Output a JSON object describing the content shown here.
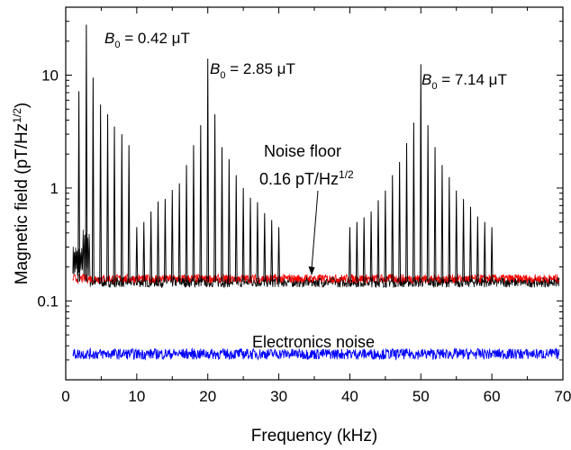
{
  "chart_data": {
    "type": "line",
    "xlabel": "Frequency (kHz)",
    "ylabel": "Magnetic field (pT/Hz",
    "ylabel_sup": "1/2",
    "ylabel_end": ")",
    "xlim": [
      0,
      70
    ],
    "ylim": [
      0.02,
      40
    ],
    "y_scale": "log",
    "grid": false,
    "x_ticks": [
      0,
      10,
      20,
      30,
      40,
      50,
      60,
      70
    ],
    "y_ticks": [
      {
        "value": 0.1,
        "label": "0.1"
      },
      {
        "value": 1,
        "label": "1"
      },
      {
        "value": 10,
        "label": "10"
      }
    ],
    "series": [
      {
        "color": "#000000",
        "peaks": [
          {
            "x": 1.85,
            "y": 7.2
          },
          {
            "x": 2.9,
            "y": 28
          },
          {
            "x": 3.85,
            "y": 9.5
          },
          {
            "x": 4.9,
            "y": 5.5
          },
          {
            "x": 5.9,
            "y": 4.5
          },
          {
            "x": 6.85,
            "y": 3.5
          },
          {
            "x": 7.9,
            "y": 3.0
          },
          {
            "x": 8.9,
            "y": 2.4
          },
          {
            "x": 10.0,
            "y": 0.45
          },
          {
            "x": 11.0,
            "y": 0.5
          },
          {
            "x": 12.0,
            "y": 0.62
          },
          {
            "x": 13.0,
            "y": 0.76
          },
          {
            "x": 14.0,
            "y": 0.8
          },
          {
            "x": 15.0,
            "y": 0.96
          },
          {
            "x": 16.0,
            "y": 1.1
          },
          {
            "x": 17.0,
            "y": 1.6
          },
          {
            "x": 18.0,
            "y": 2.4
          },
          {
            "x": 19.0,
            "y": 3.6
          },
          {
            "x": 20.0,
            "y": 14
          },
          {
            "x": 21.0,
            "y": 4.5
          },
          {
            "x": 22.0,
            "y": 2.3
          },
          {
            "x": 23.0,
            "y": 1.8
          },
          {
            "x": 24.0,
            "y": 1.3
          },
          {
            "x": 25.0,
            "y": 1.0
          },
          {
            "x": 26.0,
            "y": 0.82
          },
          {
            "x": 27.0,
            "y": 0.75
          },
          {
            "x": 28.0,
            "y": 0.6
          },
          {
            "x": 29.0,
            "y": 0.52
          },
          {
            "x": 30.0,
            "y": 0.45
          },
          {
            "x": 40.0,
            "y": 0.45
          },
          {
            "x": 41.0,
            "y": 0.5
          },
          {
            "x": 42.0,
            "y": 0.55
          },
          {
            "x": 43.0,
            "y": 0.62
          },
          {
            "x": 44.0,
            "y": 0.78
          },
          {
            "x": 45.0,
            "y": 0.95
          },
          {
            "x": 46.0,
            "y": 1.3
          },
          {
            "x": 47.0,
            "y": 1.7
          },
          {
            "x": 48.0,
            "y": 2.5
          },
          {
            "x": 49.0,
            "y": 3.8
          },
          {
            "x": 50.0,
            "y": 12.5
          },
          {
            "x": 51.0,
            "y": 3.6
          },
          {
            "x": 52.0,
            "y": 2.3
          },
          {
            "x": 53.0,
            "y": 1.6
          },
          {
            "x": 54.0,
            "y": 1.25
          },
          {
            "x": 55.0,
            "y": 0.95
          },
          {
            "x": 56.0,
            "y": 0.8
          },
          {
            "x": 57.0,
            "y": 0.68
          },
          {
            "x": 58.0,
            "y": 0.56
          },
          {
            "x": 59.0,
            "y": 0.5
          },
          {
            "x": 60.0,
            "y": 0.45
          }
        ],
        "baseline": 0.148,
        "x_range": [
          1,
          69.5
        ]
      },
      {
        "color": "#ff0000",
        "baseline": 0.158,
        "x_range": [
          1,
          69.5
        ]
      },
      {
        "color": "#0000ff",
        "baseline": 0.034,
        "x_range": [
          1,
          69.5
        ]
      }
    ],
    "annotations": [
      {
        "id": "b0a",
        "lead": "B",
        "sub": "0",
        "tail": " = 0.42 μT"
      },
      {
        "id": "b0b",
        "lead": "B",
        "sub": "0",
        "tail": " = 2.85 μT"
      },
      {
        "id": "b0c",
        "lead": "B",
        "sub": "0",
        "tail": " = 7.14 μT"
      },
      {
        "id": "noise1",
        "text": "Noise floor"
      },
      {
        "id": "noise2",
        "text": "0.16 pT/Hz",
        "sup": "1/2"
      },
      {
        "id": "elec",
        "text": "Electronics noise"
      }
    ]
  }
}
